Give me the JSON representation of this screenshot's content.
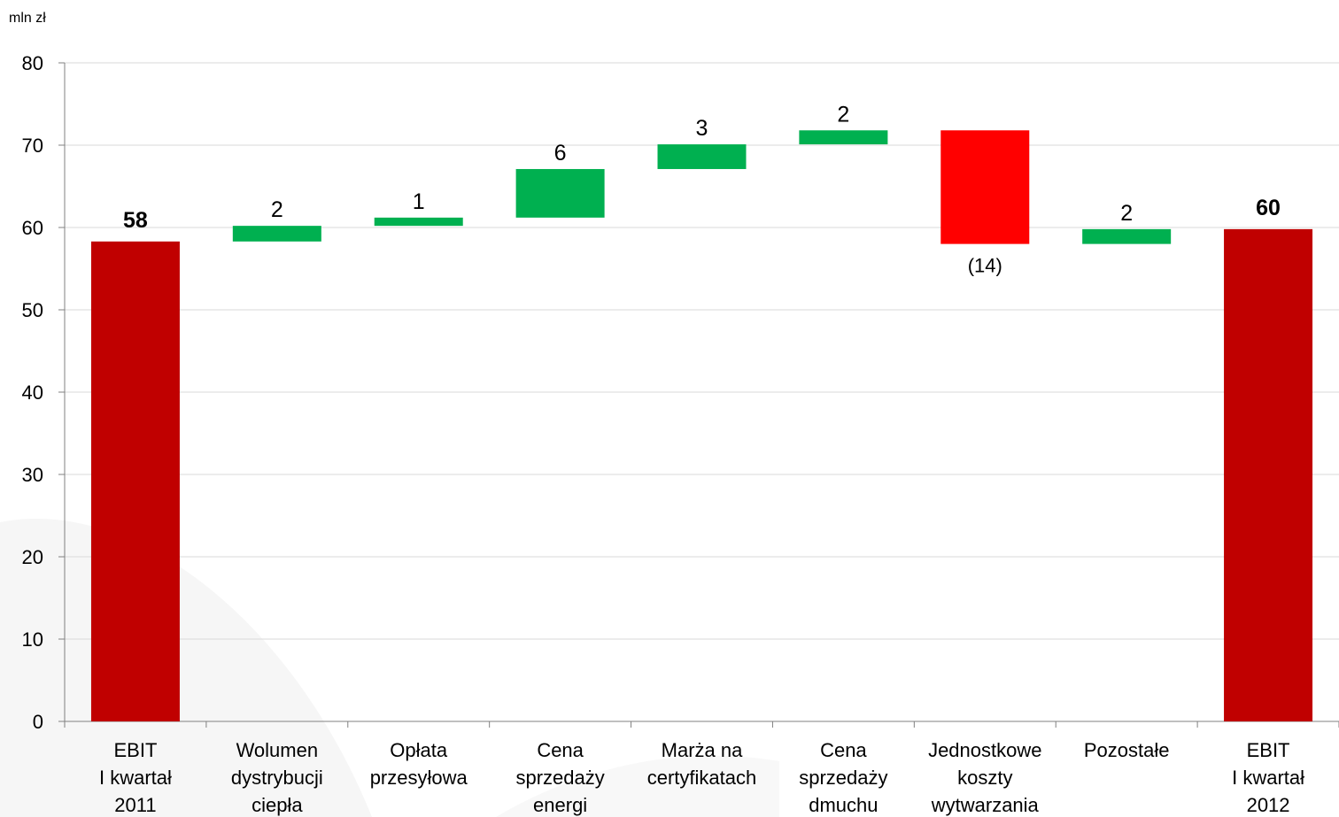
{
  "chart_data": {
    "type": "waterfall",
    "unit_label": "mln zł",
    "ylim": [
      0,
      80
    ],
    "yticks": [
      "0",
      "10",
      "20",
      "30",
      "40",
      "50",
      "60",
      "70",
      "80"
    ],
    "grid": true,
    "categories": [
      [
        "EBIT",
        "I kwartał",
        "2011"
      ],
      [
        "Wolumen",
        "dystrybucji",
        "ciepła"
      ],
      [
        "Opłata",
        "przesyłowa"
      ],
      [
        "Cena",
        "sprzedaży",
        "energi"
      ],
      [
        "Marża na",
        "certyfikatach"
      ],
      [
        "Cena",
        "sprzedaży",
        "dmuchu"
      ],
      [
        "Jednostkowe",
        "koszty",
        "wytwarzania"
      ],
      [
        "Pozostałe"
      ],
      [
        "EBIT",
        "I kwartał",
        "2012"
      ]
    ],
    "bars": [
      {
        "kind": "total",
        "base": 0,
        "top": 58.3,
        "label": "58"
      },
      {
        "kind": "increase",
        "base": 58.3,
        "top": 60.2,
        "label": "2"
      },
      {
        "kind": "increase",
        "base": 60.2,
        "top": 61.2,
        "label": "1"
      },
      {
        "kind": "increase",
        "base": 61.2,
        "top": 67.1,
        "label": "6"
      },
      {
        "kind": "increase",
        "base": 67.1,
        "top": 70.1,
        "label": "3"
      },
      {
        "kind": "increase",
        "base": 70.1,
        "top": 71.8,
        "label": "2"
      },
      {
        "kind": "decrease",
        "base": 58.0,
        "top": 71.8,
        "label": "(14)"
      },
      {
        "kind": "increase",
        "base": 58.0,
        "top": 59.8,
        "label": "2"
      },
      {
        "kind": "total",
        "base": 0,
        "top": 59.8,
        "label": "60"
      }
    ],
    "colors": {
      "total": "#C00000",
      "increase": "#00B050",
      "decrease": "#FF0000"
    }
  }
}
